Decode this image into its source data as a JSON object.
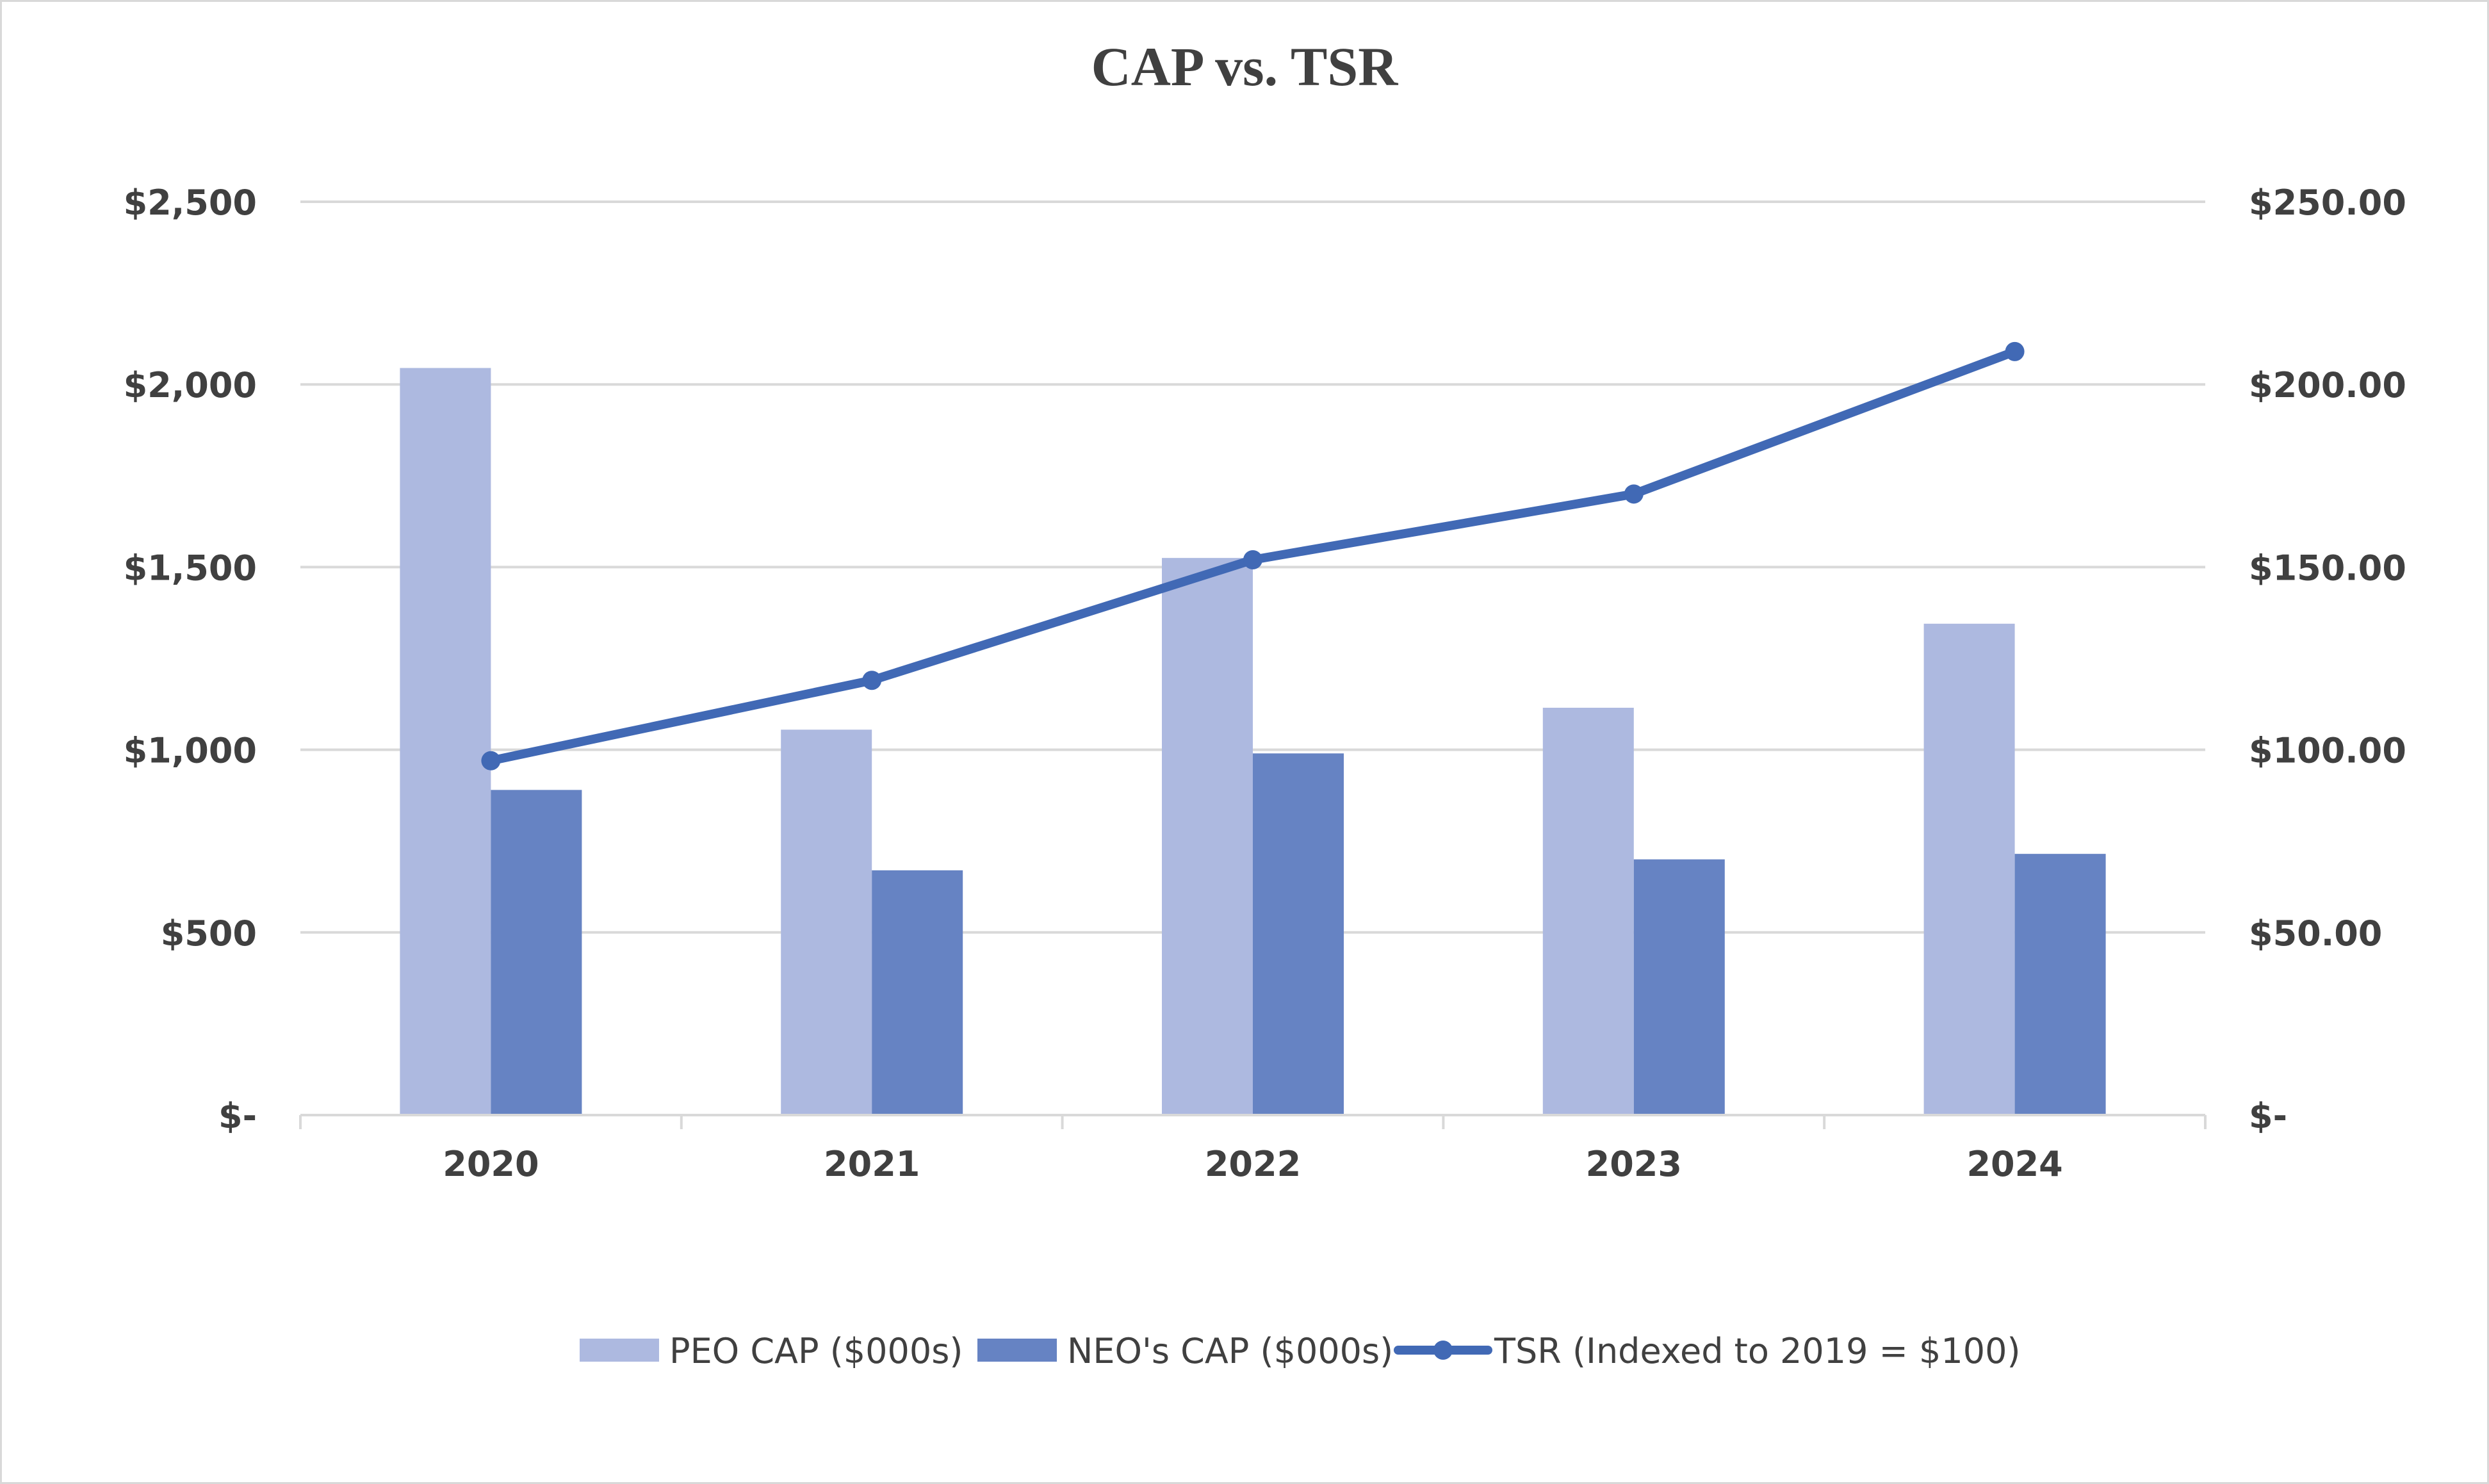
{
  "chart_data": {
    "type": "bar",
    "title": "CAP vs. TSR",
    "categories": [
      "2020",
      "2021",
      "2022",
      "2023",
      "2024"
    ],
    "series": [
      {
        "name": "PEO CAP ($000s)",
        "type": "bar",
        "axis": "left",
        "color": "#adb9e0",
        "values": [
          2045,
          1055,
          1525,
          1115,
          1345
        ]
      },
      {
        "name": "NEO's CAP ($000s)",
        "type": "bar",
        "axis": "left",
        "color": "#6683c3",
        "values": [
          890,
          670,
          990,
          700,
          715
        ]
      },
      {
        "name": "TSR (Indexed to 2019 = $100)",
        "type": "line",
        "axis": "right",
        "color": "#4169b5",
        "values": [
          97,
          119,
          152,
          170,
          209
        ]
      }
    ],
    "y_left": {
      "ylim": [
        0,
        2500
      ],
      "ticks": [
        0,
        500,
        1000,
        1500,
        2000,
        2500
      ],
      "tick_labels": [
        "$-",
        "$500",
        "$1,000",
        "$1,500",
        "$2,000",
        "$2,500"
      ]
    },
    "y_right": {
      "ylim": [
        0,
        250
      ],
      "ticks": [
        0,
        50,
        100,
        150,
        200,
        250
      ],
      "tick_labels": [
        "$-",
        "$50.00",
        "$100.00",
        "$150.00",
        "$200.00",
        "$250.00"
      ]
    },
    "grid": true,
    "grid_color": "#d9d9d9",
    "legend_position": "bottom"
  }
}
